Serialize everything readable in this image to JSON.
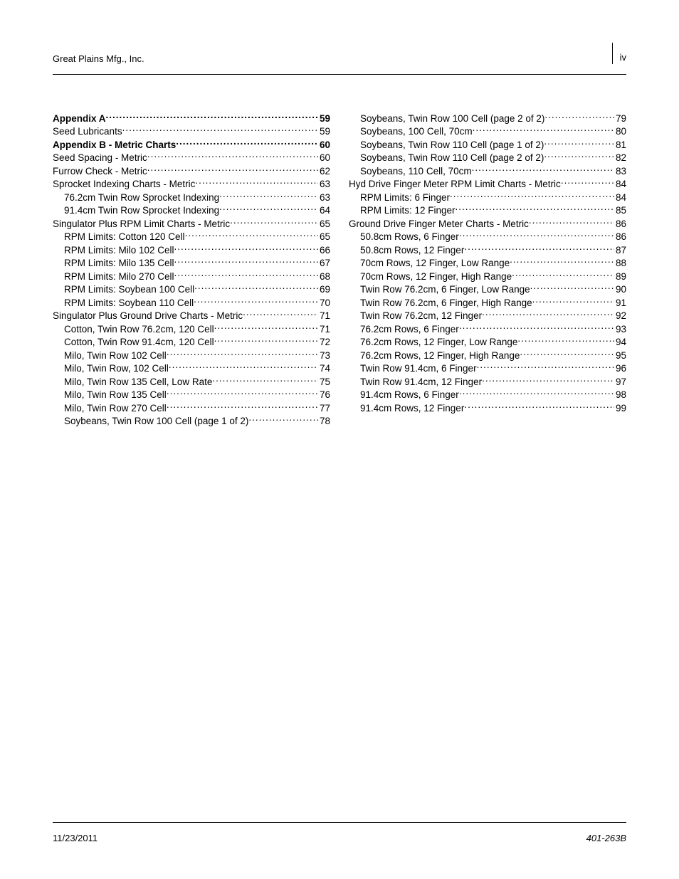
{
  "header": {
    "company": "Great Plains Mfg., Inc.",
    "page_number_top": "iv"
  },
  "footer": {
    "date": "11/23/2011",
    "doc_id": "401-263B"
  },
  "toc": {
    "left": [
      {
        "label": "Appendix A",
        "page": "59",
        "bold": true,
        "indent": 0
      },
      {
        "label": "Seed Lubricants",
        "page": "59",
        "bold": false,
        "indent": 0
      },
      {
        "label": "Appendix B - Metric Charts",
        "page": "60",
        "bold": true,
        "indent": 0
      },
      {
        "label": "Seed Spacing - Metric",
        "page": "60",
        "bold": false,
        "indent": 0
      },
      {
        "label": "Furrow Check - Metric",
        "page": "62",
        "bold": false,
        "indent": 0
      },
      {
        "label": "Sprocket Indexing Charts - Metric",
        "page": "63",
        "bold": false,
        "indent": 0
      },
      {
        "label": "76.2cm Twin Row Sprocket Indexing",
        "page": "63",
        "bold": false,
        "indent": 1
      },
      {
        "label": "91.4cm Twin Row Sprocket Indexing",
        "page": "64",
        "bold": false,
        "indent": 1
      },
      {
        "label": "Singulator Plus RPM Limit Charts - Metric",
        "page": "65",
        "bold": false,
        "indent": 0
      },
      {
        "label": "RPM Limits: Cotton 120 Cell",
        "page": "65",
        "bold": false,
        "indent": 1
      },
      {
        "label": "RPM Limits: Milo 102 Cell",
        "page": "66",
        "bold": false,
        "indent": 1
      },
      {
        "label": "RPM Limits: Milo 135 Cell",
        "page": "67",
        "bold": false,
        "indent": 1
      },
      {
        "label": "RPM Limits: Milo 270 Cell",
        "page": "68",
        "bold": false,
        "indent": 1
      },
      {
        "label": "RPM Limits: Soybean 100 Cell",
        "page": "69",
        "bold": false,
        "indent": 1
      },
      {
        "label": "RPM Limits: Soybean 110 Cell",
        "page": "70",
        "bold": false,
        "indent": 1
      },
      {
        "label": "Singulator Plus Ground Drive Charts - Metric",
        "page": "71",
        "bold": false,
        "indent": 0
      },
      {
        "label": "Cotton, Twin Row 76.2cm, 120 Cell",
        "page": "71",
        "bold": false,
        "indent": 1
      },
      {
        "label": "Cotton, Twin Row 91.4cm, 120 Cell",
        "page": "72",
        "bold": false,
        "indent": 1
      },
      {
        "label": "Milo, Twin Row 102 Cell",
        "page": "73",
        "bold": false,
        "indent": 1
      },
      {
        "label": "Milo, Twin Row, 102 Cell",
        "page": "74",
        "bold": false,
        "indent": 1
      },
      {
        "label": "Milo, Twin Row 135 Cell, Low Rate",
        "page": "75",
        "bold": false,
        "indent": 1
      },
      {
        "label": "Milo, Twin Row 135 Cell",
        "page": "76",
        "bold": false,
        "indent": 1
      },
      {
        "label": "Milo, Twin Row 270 Cell",
        "page": "77",
        "bold": false,
        "indent": 1
      },
      {
        "label": "Soybeans, Twin Row 100 Cell (page 1 of 2)",
        "page": "78",
        "bold": false,
        "indent": 1
      }
    ],
    "right": [
      {
        "label": "Soybeans, Twin Row 100 Cell (page 2 of 2)",
        "page": "79",
        "bold": false,
        "indent": 1
      },
      {
        "label": "Soybeans, 100 Cell, 70cm",
        "page": "80",
        "bold": false,
        "indent": 1
      },
      {
        "label": "Soybeans, Twin Row 110 Cell (page 1 of 2)",
        "page": "81",
        "bold": false,
        "indent": 1
      },
      {
        "label": "Soybeans, Twin Row 110 Cell (page 2 of 2)",
        "page": "82",
        "bold": false,
        "indent": 1
      },
      {
        "label": "Soybeans, 110 Cell, 70cm",
        "page": "83",
        "bold": false,
        "indent": 1
      },
      {
        "label": "Hyd Drive Finger Meter RPM Limit Charts - Metric",
        "page": "84",
        "bold": false,
        "indent": 0
      },
      {
        "label": "RPM Limits: 6 Finger",
        "page": "84",
        "bold": false,
        "indent": 1
      },
      {
        "label": "RPM Limits: 12 Finger",
        "page": "85",
        "bold": false,
        "indent": 1
      },
      {
        "label": "Ground Drive Finger Meter Charts - Metric",
        "page": "86",
        "bold": false,
        "indent": 0
      },
      {
        "label": "50.8cm Rows, 6 Finger",
        "page": "86",
        "bold": false,
        "indent": 1
      },
      {
        "label": "50.8cm Rows, 12 Finger",
        "page": "87",
        "bold": false,
        "indent": 1
      },
      {
        "label": "70cm Rows, 12 Finger, Low Range",
        "page": "88",
        "bold": false,
        "indent": 1
      },
      {
        "label": "70cm Rows, 12 Finger, High Range",
        "page": "89",
        "bold": false,
        "indent": 1
      },
      {
        "label": "Twin Row 76.2cm, 6 Finger, Low Range",
        "page": "90",
        "bold": false,
        "indent": 1
      },
      {
        "label": "Twin Row 76.2cm, 6 Finger, High Range",
        "page": "91",
        "bold": false,
        "indent": 1
      },
      {
        "label": "Twin Row 76.2cm, 12 Finger",
        "page": "92",
        "bold": false,
        "indent": 1
      },
      {
        "label": "76.2cm Rows, 6 Finger",
        "page": "93",
        "bold": false,
        "indent": 1
      },
      {
        "label": "76.2cm Rows, 12 Finger, Low Range",
        "page": "94",
        "bold": false,
        "indent": 1
      },
      {
        "label": "76.2cm Rows, 12 Finger, High Range",
        "page": "95",
        "bold": false,
        "indent": 1
      },
      {
        "label": "Twin Row 91.4cm, 6 Finger",
        "page": "96",
        "bold": false,
        "indent": 1
      },
      {
        "label": "Twin Row 91.4cm, 12 Finger",
        "page": "97",
        "bold": false,
        "indent": 1
      },
      {
        "label": "91.4cm Rows, 6 Finger",
        "page": "98",
        "bold": false,
        "indent": 1
      },
      {
        "label": "91.4cm Rows, 12 Finger",
        "page": "99",
        "bold": false,
        "indent": 1
      }
    ]
  }
}
